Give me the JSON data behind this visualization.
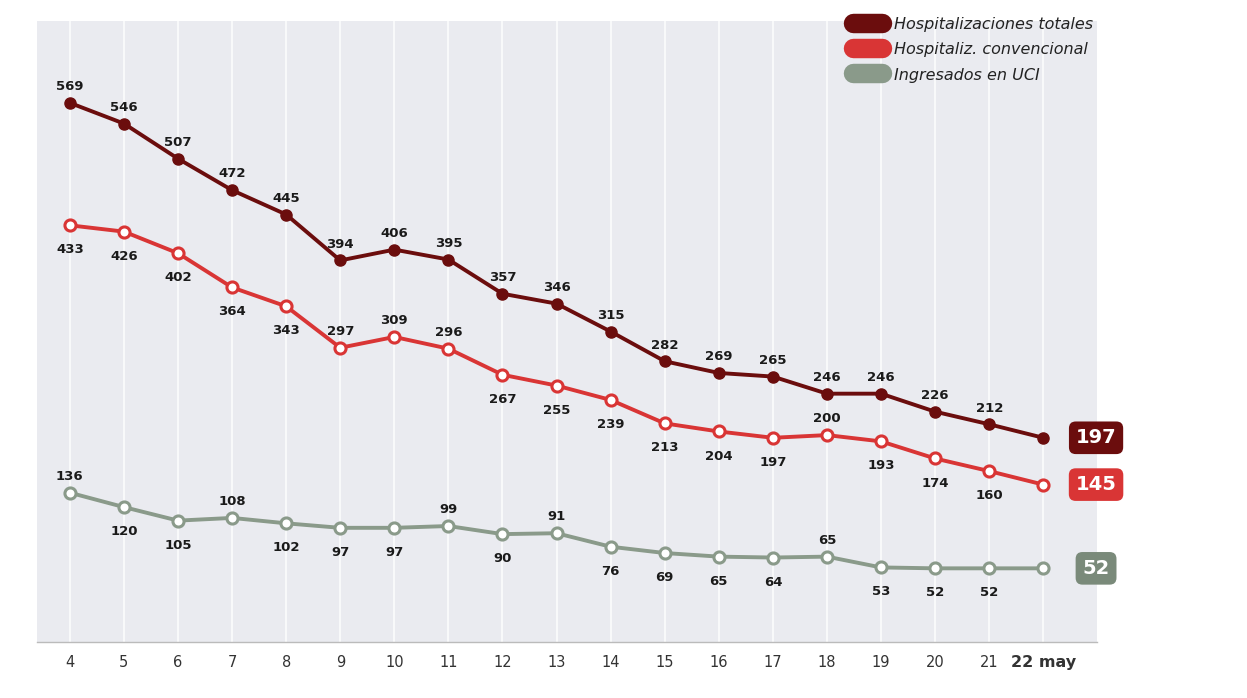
{
  "x_labels": [
    "4",
    "5",
    "6",
    "7",
    "8",
    "9",
    "10",
    "11",
    "12",
    "13",
    "14",
    "15",
    "16",
    "17",
    "18",
    "19",
    "20",
    "21",
    "22 may"
  ],
  "x_values": [
    4,
    5,
    6,
    7,
    8,
    9,
    10,
    11,
    12,
    13,
    14,
    15,
    16,
    17,
    18,
    19,
    20,
    21,
    22
  ],
  "hospitalizaciones_totales": [
    569,
    546,
    507,
    472,
    445,
    394,
    406,
    395,
    357,
    346,
    315,
    282,
    269,
    265,
    246,
    246,
    226,
    212,
    197
  ],
  "hospitalizacion_convencional": [
    433,
    426,
    402,
    364,
    343,
    297,
    309,
    296,
    267,
    255,
    239,
    213,
    204,
    197,
    200,
    193,
    174,
    160,
    145
  ],
  "ingresados_uci": [
    136,
    120,
    105,
    108,
    102,
    97,
    97,
    99,
    90,
    91,
    76,
    69,
    65,
    64,
    65,
    53,
    52,
    52,
    52
  ],
  "color_totales": "#6b0d0d",
  "color_convencional": "#d93535",
  "color_uci": "#8a9a8a",
  "background_color": "#eaebf0",
  "legend_totales": "Hospitalizaciones totales",
  "legend_convencional": "Hospitaliz. convencional",
  "legend_uci": "Ingresados en UCI",
  "label_totales_final": "197",
  "label_convencional_final": "145",
  "label_uci_final": "52",
  "badge_color_totales": "#6b0d0d",
  "badge_color_convencional": "#d93535",
  "badge_color_uci": "#7a8a7a"
}
